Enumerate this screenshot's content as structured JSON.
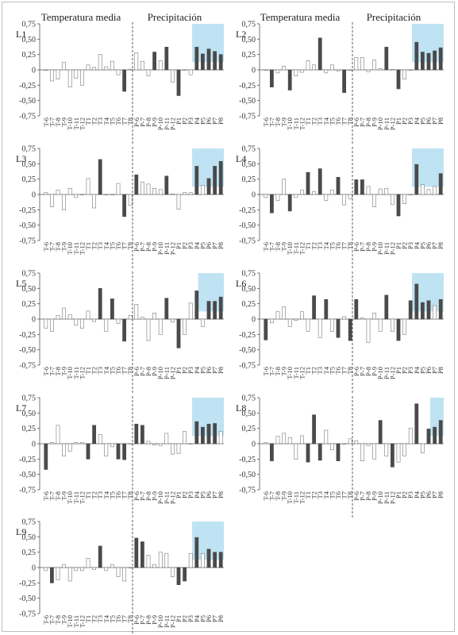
{
  "header": {
    "left": {
      "temp": "Temperatura media",
      "prec": "Precipitación"
    },
    "right": {
      "temp": "Temperatura media",
      "prec": "Precipitación"
    }
  },
  "colors": {
    "significant_bar": "#4a4a4a",
    "nonsignificant_bar": "#ffffff",
    "bar_outline": "#7a7a7a",
    "highlight": "#bfe3f3",
    "axis": "#555555",
    "separator": "#333333"
  },
  "chart_data": [
    {
      "type": "bar",
      "panel": "L1",
      "ylim": [
        -0.75,
        0.75
      ],
      "yticks": [
        "0,75",
        "0,50",
        "0,25",
        "0",
        "-0,25",
        "-0,50",
        "-0,75"
      ],
      "highlight_categories": [
        "P4",
        "P8"
      ],
      "categories": [
        "T-6",
        "T-7",
        "T-8",
        "T-9",
        "T-10",
        "T-11",
        "T-12",
        "T1",
        "T2",
        "T3",
        "T4",
        "T5",
        "T6",
        "T7",
        "T8",
        "P-6",
        "P-7",
        "P-8",
        "P-9",
        "P-10",
        "P-11",
        "P-12",
        "P1",
        "P2",
        "P3",
        "P4",
        "P5",
        "P6",
        "P7",
        "P8"
      ],
      "values": [
        0,
        -0.18,
        -0.15,
        0.12,
        -0.28,
        -0.14,
        -0.25,
        0.08,
        0.04,
        0.25,
        0.05,
        0.14,
        -0.08,
        -0.35,
        0.01,
        0.28,
        0.14,
        -0.1,
        0.29,
        0.15,
        0.37,
        -0.2,
        -0.42,
        0.0,
        -0.08,
        0.37,
        0.26,
        0.34,
        0.3,
        0.25
      ],
      "significant": [
        0,
        0,
        0,
        0,
        0,
        0,
        0,
        0,
        0,
        0,
        0,
        0,
        0,
        1,
        0,
        0,
        0,
        0,
        1,
        0,
        1,
        0,
        1,
        0,
        0,
        1,
        1,
        1,
        1,
        1
      ]
    },
    {
      "type": "bar",
      "panel": "L2",
      "ylim": [
        -0.75,
        0.75
      ],
      "yticks": [
        "0,75",
        "0,50",
        "0,25",
        "0",
        "-0,25",
        "-0,50",
        "-0,75"
      ],
      "highlight_categories": [
        "P4",
        "P8"
      ],
      "categories": [
        "T-6",
        "T-7",
        "T-8",
        "T-9",
        "T-10",
        "T-11",
        "T-12",
        "T1",
        "T2",
        "T3",
        "T4",
        "T5",
        "T6",
        "T7",
        "T8",
        "P-6",
        "P-7",
        "P-8",
        "P-9",
        "P-10",
        "P-11",
        "P-12",
        "P1",
        "P2",
        "P3",
        "P4",
        "P5",
        "P6",
        "P7",
        "P8"
      ],
      "values": [
        0,
        -0.28,
        -0.05,
        0.06,
        -0.33,
        -0.1,
        -0.04,
        0.15,
        0.08,
        0.52,
        -0.05,
        0.08,
        -0.02,
        -0.37,
        0.0,
        0.2,
        0.2,
        -0.03,
        0.16,
        0.02,
        0.37,
        0.01,
        -0.31,
        -0.15,
        0.0,
        0.45,
        0.29,
        0.27,
        0.31,
        0.36
      ],
      "significant": [
        0,
        1,
        0,
        0,
        1,
        0,
        0,
        0,
        0,
        1,
        0,
        0,
        0,
        1,
        0,
        0,
        0,
        0,
        0,
        0,
        1,
        0,
        1,
        0,
        0,
        1,
        1,
        1,
        1,
        1
      ]
    },
    {
      "type": "bar",
      "panel": "L3",
      "ylim": [
        -0.75,
        0.75
      ],
      "yticks": [
        "0,75",
        "0,50",
        "0,25",
        "0",
        "-0,25",
        "-0,50",
        "-0,75"
      ],
      "highlight_categories": [
        "P4",
        "P8"
      ],
      "categories": [
        "T-6",
        "T-7",
        "T-8",
        "T-9",
        "T-10",
        "T-11",
        "T-12",
        "T1",
        "T2",
        "T3",
        "T4",
        "T5",
        "T6",
        "T7",
        "T8",
        "P-6",
        "P-7",
        "P-8",
        "P-9",
        "P-10",
        "P-11",
        "P-12",
        "P1",
        "P2",
        "P3",
        "P4",
        "P5",
        "P6",
        "P7",
        "P8"
      ],
      "values": [
        0.03,
        -0.2,
        0.07,
        -0.25,
        0.1,
        -0.05,
        0.0,
        0.26,
        -0.22,
        0.57,
        -0.01,
        0.0,
        0.18,
        -0.36,
        -0.18,
        0.32,
        0.2,
        0.17,
        0.1,
        0.08,
        0.3,
        0.01,
        -0.24,
        0.03,
        0.03,
        0.46,
        0.15,
        0.26,
        0.46,
        0.54
      ],
      "significant": [
        0,
        0,
        0,
        0,
        0,
        0,
        0,
        0,
        0,
        1,
        0,
        0,
        0,
        1,
        0,
        1,
        0,
        0,
        0,
        0,
        1,
        0,
        0,
        0,
        0,
        1,
        0,
        1,
        1,
        1
      ]
    },
    {
      "type": "bar",
      "panel": "L4",
      "ylim": [
        -0.75,
        0.75
      ],
      "yticks": [
        "0,75",
        "0,50",
        "0,25",
        "0",
        "-0,25",
        "-0,50",
        "-0,75"
      ],
      "highlight_categories": [
        "P4",
        "P8"
      ],
      "categories": [
        "T-6",
        "T-7",
        "T-8",
        "T-9",
        "T-10",
        "T-11",
        "T-12",
        "T1",
        "T2",
        "T3",
        "T4",
        "T5",
        "T6",
        "T7",
        "T8",
        "P-6",
        "P-7",
        "P-8",
        "P-9",
        "P-10",
        "P-11",
        "P-12",
        "P1",
        "P2",
        "P3",
        "P4",
        "P5",
        "P6",
        "P7",
        "P8"
      ],
      "values": [
        -0.05,
        -0.3,
        -0.1,
        0.25,
        -0.27,
        -0.05,
        0.07,
        0.36,
        0.05,
        0.42,
        -0.1,
        0.07,
        0.28,
        -0.17,
        -0.07,
        0.24,
        0.24,
        0.13,
        -0.2,
        0.09,
        0.1,
        -0.16,
        -0.35,
        -0.15,
        0.0,
        0.49,
        0.16,
        0.08,
        0.13,
        0.34
      ],
      "significant": [
        0,
        1,
        0,
        0,
        1,
        0,
        0,
        1,
        0,
        1,
        0,
        0,
        1,
        0,
        0,
        1,
        1,
        0,
        0,
        0,
        0,
        0,
        1,
        0,
        0,
        1,
        0,
        0,
        0,
        1
      ]
    },
    {
      "type": "bar",
      "panel": "L5",
      "ylim": [
        -0.75,
        0.75
      ],
      "yticks": [
        "0,75",
        "0,50",
        "0,25",
        "0",
        "-0,25",
        "-0,50",
        "-0,75"
      ],
      "highlight_categories": [
        "P5",
        "P8"
      ],
      "categories": [
        "T-6",
        "T-7",
        "T-8",
        "T-9",
        "T-10",
        "T-11",
        "T-12",
        "T1",
        "T2",
        "T3",
        "T4",
        "T5",
        "T6",
        "T7",
        "T8",
        "P-6",
        "P-7",
        "P-8",
        "P-9",
        "P-10",
        "P-11",
        "P-12",
        "P1",
        "P2",
        "P3",
        "P4",
        "P5",
        "P6",
        "P7",
        "P8"
      ],
      "values": [
        -0.15,
        -0.2,
        0.06,
        0.18,
        0.07,
        -0.1,
        -0.15,
        0.13,
        -0.04,
        0.5,
        -0.2,
        0.33,
        -0.07,
        -0.36,
        0.06,
        0.24,
        0.03,
        -0.35,
        0.1,
        -0.25,
        0.34,
        -0.05,
        -0.47,
        -0.25,
        0.26,
        0.46,
        -0.12,
        0.29,
        0.29,
        0.36
      ],
      "significant": [
        0,
        0,
        0,
        0,
        0,
        0,
        0,
        0,
        0,
        1,
        0,
        1,
        0,
        1,
        0,
        0,
        0,
        0,
        0,
        0,
        1,
        0,
        1,
        0,
        0,
        1,
        0,
        1,
        1,
        1
      ]
    },
    {
      "type": "bar",
      "panel": "L6",
      "ylim": [
        -0.75,
        0.75
      ],
      "yticks": [
        "0,75",
        "0,50",
        "0,25",
        "0",
        "-0,25",
        "-0,50",
        "-0,75"
      ],
      "highlight_categories": [
        "P4",
        "P8"
      ],
      "categories": [
        "T-6",
        "T-7",
        "T-8",
        "T-9",
        "T-10",
        "T-11",
        "T-12",
        "T1",
        "T2",
        "T3",
        "T4",
        "T5",
        "T6",
        "T7",
        "T8",
        "P-6",
        "P-7",
        "P-8",
        "P-9",
        "P-10",
        "P-11",
        "P-12",
        "P1",
        "P2",
        "P3",
        "P4",
        "P5",
        "P6",
        "P7",
        "P8"
      ],
      "values": [
        -0.34,
        -0.06,
        0.12,
        0.2,
        -0.12,
        -0.02,
        0.12,
        -0.2,
        0.38,
        -0.3,
        0.32,
        -0.2,
        -0.3,
        0.04,
        -0.35,
        0.32,
        0.02,
        -0.38,
        0.1,
        -0.2,
        0.39,
        -0.2,
        -0.35,
        -0.25,
        0.3,
        0.57,
        0.27,
        0.3,
        0.22,
        0.32
      ],
      "significant": [
        1,
        0,
        0,
        0,
        0,
        0,
        0,
        0,
        1,
        0,
        1,
        0,
        1,
        0,
        1,
        1,
        0,
        0,
        0,
        0,
        1,
        0,
        1,
        0,
        1,
        1,
        1,
        1,
        0,
        1
      ]
    },
    {
      "type": "bar",
      "panel": "L7",
      "ylim": [
        -0.75,
        0.75
      ],
      "yticks": [
        "0,75",
        "0,50",
        "0,25",
        "0",
        "-0,25",
        "-0,50",
        "-0,75"
      ],
      "highlight_categories": [
        "P4",
        "P8"
      ],
      "categories": [
        "T-6",
        "T-7",
        "T-8",
        "T-9",
        "T-10",
        "T-11",
        "T-12",
        "T1",
        "T2",
        "T3",
        "T4",
        "T5",
        "T6",
        "T7",
        "T8",
        "P-6",
        "P-7",
        "P-8",
        "P-9",
        "P-10",
        "P-11",
        "P-12",
        "P1",
        "P2",
        "P3",
        "P4",
        "P5",
        "P6",
        "P7",
        "P8"
      ],
      "values": [
        -0.42,
        0.02,
        0.3,
        -0.2,
        -0.12,
        0.02,
        0.02,
        -0.25,
        0.3,
        0.15,
        -0.2,
        -0.05,
        -0.25,
        -0.26,
        0.0,
        0.32,
        0.3,
        0.04,
        -0.02,
        -0.03,
        0.17,
        -0.17,
        -0.16,
        0.2,
        0.0,
        0.36,
        0.27,
        0.32,
        0.33,
        0.2
      ],
      "significant": [
        1,
        0,
        0,
        0,
        0,
        0,
        0,
        1,
        1,
        0,
        0,
        0,
        1,
        1,
        0,
        1,
        1,
        0,
        0,
        0,
        0,
        0,
        0,
        0,
        0,
        1,
        1,
        1,
        1,
        0
      ]
    },
    {
      "type": "bar",
      "panel": "L8",
      "ylim": [
        -0.75,
        0.75
      ],
      "yticks": [
        "0,75",
        "0,50",
        "0,25",
        "0",
        "-0,25",
        "-0,50",
        "-0,75"
      ],
      "highlight_categories": [
        "P7",
        "P8"
      ],
      "categories": [
        "T-6",
        "T-7",
        "T-8",
        "T-9",
        "T-10",
        "T-11",
        "T-12",
        "T1",
        "T2",
        "T3",
        "T4",
        "T5",
        "T6",
        "T7",
        "T8",
        "P-6",
        "P-7",
        "P-8",
        "P-9",
        "P-10",
        "P-11",
        "P-12",
        "P1",
        "P2",
        "P3",
        "P4",
        "P5",
        "P6",
        "P7",
        "P8"
      ],
      "values": [
        0.02,
        -0.28,
        0.12,
        0.17,
        0.1,
        -0.25,
        0.13,
        -0.3,
        0.47,
        -0.27,
        0.22,
        -0.1,
        -0.28,
        0.0,
        0.08,
        0.05,
        -0.28,
        -0.03,
        -0.25,
        0.38,
        -0.2,
        -0.38,
        -0.3,
        -0.2,
        0.25,
        0.65,
        -0.15,
        0.24,
        0.27,
        0.38
      ],
      "significant": [
        0,
        1,
        0,
        0,
        0,
        0,
        0,
        1,
        1,
        1,
        0,
        0,
        1,
        0,
        0,
        0,
        0,
        0,
        0,
        1,
        0,
        1,
        0,
        0,
        0,
        1,
        0,
        1,
        1,
        1
      ]
    },
    {
      "type": "bar",
      "panel": "L9",
      "ylim": [
        -0.75,
        0.75
      ],
      "yticks": [
        "0,75",
        "0,50",
        "0,25",
        "0",
        "-0,25",
        "-0,50",
        "-0,75"
      ],
      "highlight_categories": [
        "P4",
        "P8"
      ],
      "categories": [
        "T-6",
        "T-7",
        "T-8",
        "T-9",
        "T-10",
        "T-11",
        "T-12",
        "T1",
        "T2",
        "T3",
        "T4",
        "T5",
        "T6",
        "T7",
        "T8",
        "P-6",
        "P-7",
        "P-8",
        "P-9",
        "P-10",
        "P-11",
        "P-12",
        "P1",
        "P2",
        "P3",
        "P4",
        "P5",
        "P6",
        "P7",
        "P8"
      ],
      "values": [
        -0.05,
        -0.25,
        -0.2,
        0.05,
        -0.22,
        -0.05,
        -0.05,
        0.15,
        -0.03,
        0.35,
        -0.05,
        0.05,
        -0.15,
        -0.22,
        0.0,
        0.48,
        0.42,
        0.2,
        0.05,
        0.25,
        0.23,
        -0.15,
        -0.28,
        -0.22,
        0.23,
        0.49,
        0.23,
        0.3,
        0.25,
        0.25
      ],
      "significant": [
        0,
        1,
        0,
        0,
        0,
        0,
        0,
        0,
        0,
        1,
        0,
        0,
        0,
        0,
        0,
        1,
        1,
        0,
        0,
        0,
        0,
        0,
        1,
        1,
        0,
        1,
        0,
        1,
        1,
        1
      ]
    }
  ]
}
